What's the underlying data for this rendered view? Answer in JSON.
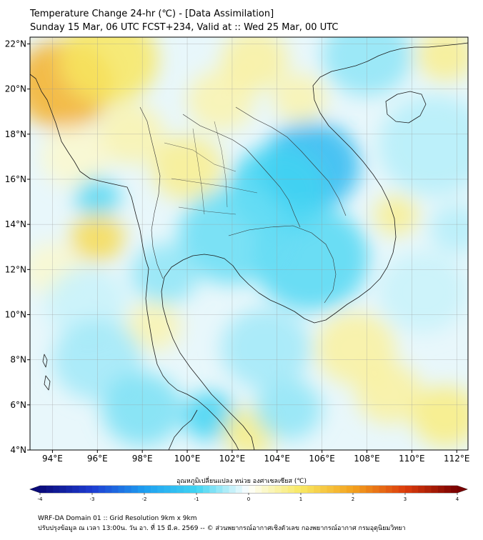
{
  "title": {
    "line1": "Temperature Change 24-hr (℃) - [Data Assimilation]",
    "line2": "Sunday 15 Mar, 06 UTC FCST+234, Valid at :: Wed 25 Mar, 00 UTC"
  },
  "map": {
    "lon_range": [
      93,
      112.5
    ],
    "lat_range": [
      4,
      22.3
    ],
    "lon_ticks": [
      {
        "value": 94,
        "label": "94°E"
      },
      {
        "value": 96,
        "label": "96°E"
      },
      {
        "value": 98,
        "label": "98°E"
      },
      {
        "value": 100,
        "label": "100°E"
      },
      {
        "value": 102,
        "label": "102°E"
      },
      {
        "value": 104,
        "label": "104°E"
      },
      {
        "value": 106,
        "label": "106°E"
      },
      {
        "value": 108,
        "label": "108°E"
      },
      {
        "value": 110,
        "label": "110°E"
      },
      {
        "value": 112,
        "label": "112°E"
      }
    ],
    "lat_ticks": [
      {
        "value": 4,
        "label": "4°N"
      },
      {
        "value": 6,
        "label": "6°N"
      },
      {
        "value": 8,
        "label": "8°N"
      },
      {
        "value": 10,
        "label": "10°N"
      },
      {
        "value": 12,
        "label": "12°N"
      },
      {
        "value": 14,
        "label": "14°N"
      },
      {
        "value": 16,
        "label": "16°N"
      },
      {
        "value": 18,
        "label": "18°N"
      },
      {
        "value": 20,
        "label": "20°N"
      },
      {
        "value": 22,
        "label": "22°N"
      }
    ],
    "grid": true,
    "field_blobs": [
      {
        "lon": 94.5,
        "lat": 20.2,
        "value": 1.8,
        "r": 2.2
      },
      {
        "lon": 96.5,
        "lat": 21.3,
        "value": 1.0,
        "r": 2.2
      },
      {
        "lon": 97.5,
        "lat": 18.0,
        "value": 0.5,
        "r": 1.5
      },
      {
        "lon": 95.0,
        "lat": 17.0,
        "value": 0.3,
        "r": 1.5
      },
      {
        "lon": 100.0,
        "lat": 16.5,
        "value": 0.7,
        "r": 1.6
      },
      {
        "lon": 101.5,
        "lat": 19.5,
        "value": 0.5,
        "r": 1.5
      },
      {
        "lon": 103.0,
        "lat": 21.3,
        "value": 0.6,
        "r": 1.5
      },
      {
        "lon": 105.0,
        "lat": 19.6,
        "value": 0.5,
        "r": 1.2
      },
      {
        "lon": 108.0,
        "lat": 21.5,
        "value": -0.6,
        "r": 2.0
      },
      {
        "lon": 111.5,
        "lat": 21.5,
        "value": 0.7,
        "r": 1.3
      },
      {
        "lon": 111.0,
        "lat": 17.5,
        "value": -0.4,
        "r": 2.5
      },
      {
        "lon": 105.5,
        "lat": 16.6,
        "value": -1.5,
        "r": 2.2
      },
      {
        "lon": 104.0,
        "lat": 15.5,
        "value": -1.0,
        "r": 2.2
      },
      {
        "lon": 105.5,
        "lat": 12.5,
        "value": -0.9,
        "r": 2.6
      },
      {
        "lon": 102.0,
        "lat": 13.5,
        "value": -0.8,
        "r": 2.4
      },
      {
        "lon": 96.0,
        "lat": 15.2,
        "value": -0.9,
        "r": 1.0
      },
      {
        "lon": 96.0,
        "lat": 13.4,
        "value": 1.2,
        "r": 1.2
      },
      {
        "lon": 94.0,
        "lat": 12.0,
        "value": 0.3,
        "r": 1.3
      },
      {
        "lon": 95.5,
        "lat": 10.5,
        "value": -0.3,
        "r": 1.8
      },
      {
        "lon": 99.0,
        "lat": 11.8,
        "value": -0.6,
        "r": 1.5
      },
      {
        "lon": 98.5,
        "lat": 9.5,
        "value": 0.5,
        "r": 1.2
      },
      {
        "lon": 96.0,
        "lat": 8.0,
        "value": -0.5,
        "r": 2.0
      },
      {
        "lon": 98.0,
        "lat": 5.8,
        "value": -0.7,
        "r": 1.8
      },
      {
        "lon": 101.0,
        "lat": 5.5,
        "value": -1.0,
        "r": 1.2
      },
      {
        "lon": 102.8,
        "lat": 4.8,
        "value": 0.8,
        "r": 1.2
      },
      {
        "lon": 104.5,
        "lat": 5.8,
        "value": -0.6,
        "r": 1.5
      },
      {
        "lon": 103.5,
        "lat": 8.5,
        "value": -0.5,
        "r": 2.0
      },
      {
        "lon": 107.5,
        "lat": 8.5,
        "value": 0.6,
        "r": 1.8
      },
      {
        "lon": 109.0,
        "lat": 6.5,
        "value": 0.6,
        "r": 1.5
      },
      {
        "lon": 111.5,
        "lat": 5.5,
        "value": 0.8,
        "r": 1.5
      },
      {
        "lon": 110.5,
        "lat": 11.0,
        "value": -0.3,
        "r": 2.0
      },
      {
        "lon": 112.0,
        "lat": 13.8,
        "value": -0.4,
        "r": 1.2
      },
      {
        "lon": 109.3,
        "lat": 14.4,
        "value": 0.7,
        "r": 1.0
      }
    ]
  },
  "colorbar": {
    "label": "อุณหภูมิเปลี่ยนแปลง หน่วย องศาเซลเซียส (℃)",
    "min": -4,
    "max": 4,
    "ticks": [
      {
        "value": -4,
        "label": "-4"
      },
      {
        "value": -3,
        "label": "-3"
      },
      {
        "value": -2,
        "label": "-2"
      },
      {
        "value": -1,
        "label": "-1"
      },
      {
        "value": 0,
        "label": "0"
      },
      {
        "value": 1,
        "label": "1"
      },
      {
        "value": 2,
        "label": "2"
      },
      {
        "value": 3,
        "label": "3"
      },
      {
        "value": 4,
        "label": "4"
      }
    ],
    "stops": [
      {
        "value": -4,
        "color": "#0a0a78"
      },
      {
        "value": -3,
        "color": "#1e3cd2"
      },
      {
        "value": -2,
        "color": "#1e9ff0"
      },
      {
        "value": -1,
        "color": "#40d4f2"
      },
      {
        "value": -0.3,
        "color": "#c8f2fa"
      },
      {
        "value": 0,
        "color": "#ffffff"
      },
      {
        "value": 0.3,
        "color": "#fbf8cc"
      },
      {
        "value": 1,
        "color": "#f8e862"
      },
      {
        "value": 2,
        "color": "#f3a21e"
      },
      {
        "value": 3,
        "color": "#dc3c0c"
      },
      {
        "value": 4,
        "color": "#780000"
      }
    ]
  },
  "footer": {
    "line1": "WRF-DA Domain 01 :: Grid Resolution 9km x 9km",
    "line2": "ปรับปรุงข้อมูล ณ เวลา 13:00น. วัน อา. ที่ 15 มี.ค. 2569 -- © ส่วนพยากรณ์อากาศเชิงตัวเลข กองพยากรณ์อากาศ กรมอุตุนิยมวิทยา"
  }
}
